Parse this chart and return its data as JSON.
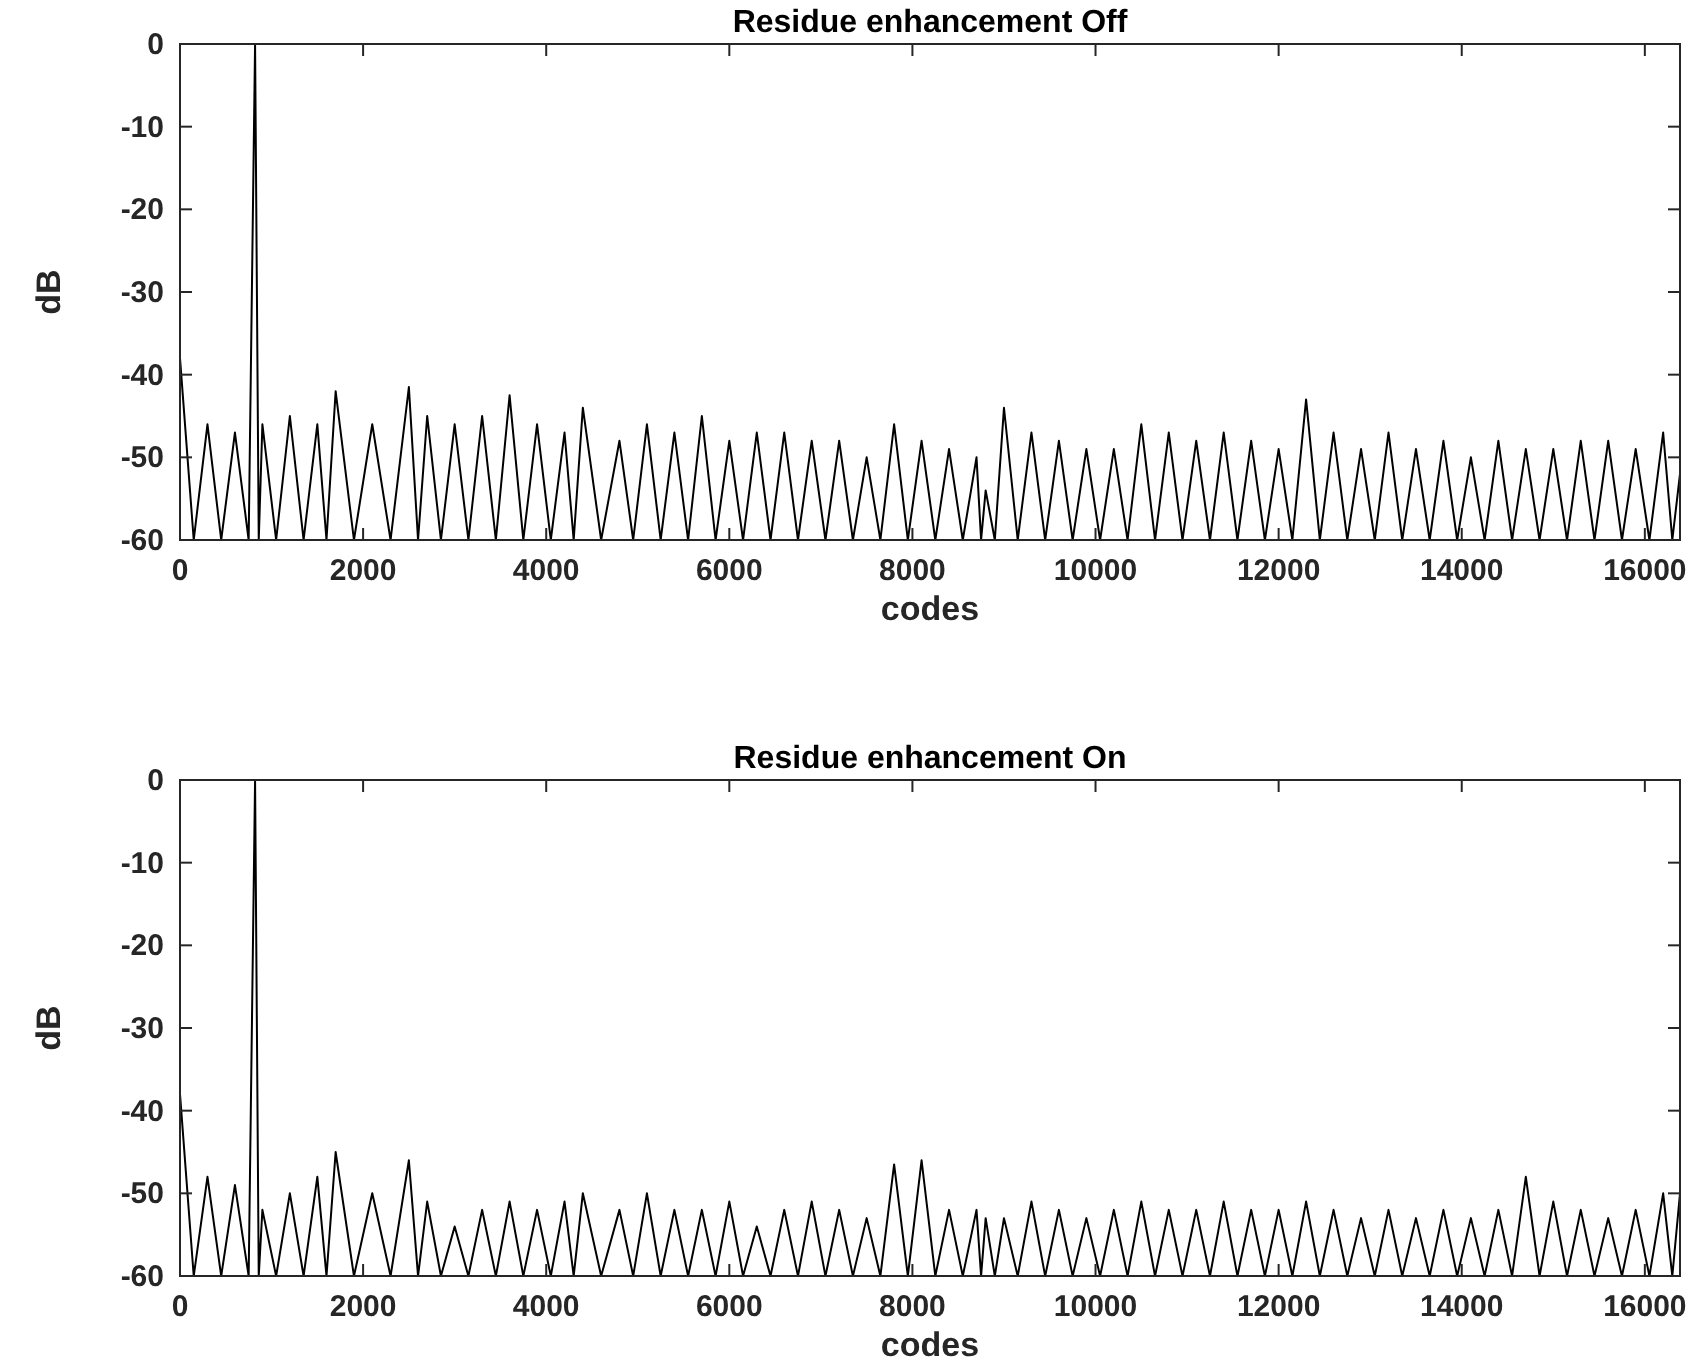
{
  "chart_data": [
    {
      "type": "line",
      "title": "Residue enhancement Off",
      "xlabel": "codes",
      "ylabel": "dB",
      "xlim": [
        0,
        16384
      ],
      "xticks": [
        0,
        2000,
        4000,
        6000,
        8000,
        10000,
        12000,
        14000,
        16000
      ],
      "ylim": [
        -60,
        0
      ],
      "yticks": [
        -60,
        -50,
        -40,
        -30,
        -20,
        -10,
        0
      ],
      "grid": false,
      "series": [
        {
          "color": "#000000",
          "x": [
            0,
            150,
            300,
            450,
            600,
            750,
            820,
            860,
            900,
            1050,
            1200,
            1350,
            1500,
            1600,
            1700,
            1900,
            2100,
            2300,
            2500,
            2600,
            2700,
            2850,
            3000,
            3150,
            3300,
            3450,
            3600,
            3750,
            3900,
            4050,
            4200,
            4300,
            4400,
            4600,
            4800,
            4950,
            5100,
            5250,
            5400,
            5550,
            5700,
            5850,
            6000,
            6150,
            6300,
            6450,
            6600,
            6750,
            6900,
            7050,
            7200,
            7350,
            7500,
            7650,
            7800,
            7950,
            8100,
            8250,
            8400,
            8550,
            8700,
            8750,
            8800,
            8900,
            9000,
            9150,
            9300,
            9450,
            9600,
            9750,
            9900,
            10050,
            10200,
            10350,
            10500,
            10650,
            10800,
            10950,
            11100,
            11250,
            11400,
            11550,
            11700,
            11850,
            12000,
            12150,
            12300,
            12450,
            12600,
            12750,
            12900,
            13050,
            13200,
            13350,
            13500,
            13650,
            13800,
            13950,
            14100,
            14250,
            14400,
            14550,
            14700,
            14850,
            15000,
            15150,
            15300,
            15450,
            15600,
            15750,
            15900,
            16050,
            16200,
            16300,
            16384
          ],
          "values": [
            -38,
            -60,
            -46,
            -60,
            -47,
            -60,
            0,
            -60,
            -46,
            -60,
            -45,
            -60,
            -46,
            -60,
            -42,
            -60,
            -46,
            -60,
            -41.5,
            -60,
            -45,
            -60,
            -46,
            -60,
            -45,
            -60,
            -42.5,
            -60,
            -46,
            -60,
            -47,
            -60,
            -44,
            -60,
            -48,
            -60,
            -46,
            -60,
            -47,
            -60,
            -45,
            -60,
            -48,
            -60,
            -47,
            -60,
            -47,
            -60,
            -48,
            -60,
            -48,
            -60,
            -50,
            -60,
            -46,
            -60,
            -48,
            -60,
            -49,
            -60,
            -50,
            -60,
            -54,
            -60,
            -44,
            -60,
            -47,
            -60,
            -48,
            -60,
            -49,
            -60,
            -49,
            -60,
            -46,
            -60,
            -47,
            -60,
            -48,
            -60,
            -47,
            -60,
            -48,
            -60,
            -49,
            -60,
            -43,
            -60,
            -47,
            -60,
            -49,
            -60,
            -47,
            -60,
            -49,
            -60,
            -48,
            -60,
            -50,
            -60,
            -48,
            -60,
            -49,
            -60,
            -49,
            -60,
            -48,
            -60,
            -48,
            -60,
            -49,
            -60,
            -47,
            -60,
            -52
          ]
        }
      ]
    },
    {
      "type": "line",
      "title": "Residue enhancement On",
      "xlabel": "codes",
      "ylabel": "dB",
      "xlim": [
        0,
        16384
      ],
      "xticks": [
        0,
        2000,
        4000,
        6000,
        8000,
        10000,
        12000,
        14000,
        16000
      ],
      "ylim": [
        -60,
        0
      ],
      "yticks": [
        -60,
        -50,
        -40,
        -30,
        -20,
        -10,
        0
      ],
      "grid": false,
      "series": [
        {
          "color": "#000000",
          "x": [
            0,
            150,
            300,
            450,
            600,
            750,
            820,
            860,
            900,
            1050,
            1200,
            1350,
            1500,
            1600,
            1700,
            1900,
            2100,
            2300,
            2500,
            2600,
            2700,
            2850,
            3000,
            3150,
            3300,
            3450,
            3600,
            3750,
            3900,
            4050,
            4200,
            4300,
            4400,
            4600,
            4800,
            4950,
            5100,
            5250,
            5400,
            5550,
            5700,
            5850,
            6000,
            6150,
            6300,
            6450,
            6600,
            6750,
            6900,
            7050,
            7200,
            7350,
            7500,
            7650,
            7800,
            7950,
            8100,
            8250,
            8400,
            8550,
            8700,
            8750,
            8800,
            8900,
            9000,
            9150,
            9300,
            9450,
            9600,
            9750,
            9900,
            10050,
            10200,
            10350,
            10500,
            10650,
            10800,
            10950,
            11100,
            11250,
            11400,
            11550,
            11700,
            11850,
            12000,
            12150,
            12300,
            12450,
            12600,
            12750,
            12900,
            13050,
            13200,
            13350,
            13500,
            13650,
            13800,
            13950,
            14100,
            14250,
            14400,
            14550,
            14700,
            14850,
            15000,
            15150,
            15300,
            15450,
            15600,
            15750,
            15900,
            16050,
            16200,
            16300,
            16384
          ],
          "values": [
            -38,
            -60,
            -48,
            -60,
            -49,
            -60,
            0,
            -60,
            -52,
            -60,
            -50,
            -60,
            -48,
            -60,
            -45,
            -60,
            -50,
            -60,
            -46,
            -60,
            -51,
            -60,
            -54,
            -60,
            -52,
            -60,
            -51,
            -60,
            -52,
            -60,
            -51,
            -60,
            -50,
            -60,
            -52,
            -60,
            -50,
            -60,
            -52,
            -60,
            -52,
            -60,
            -51,
            -60,
            -54,
            -60,
            -52,
            -60,
            -51,
            -60,
            -52,
            -60,
            -53,
            -60,
            -46.5,
            -60,
            -46,
            -60,
            -52,
            -60,
            -52,
            -60,
            -53,
            -60,
            -53,
            -60,
            -51,
            -60,
            -52,
            -60,
            -53,
            -60,
            -52,
            -60,
            -51,
            -60,
            -52,
            -60,
            -52,
            -60,
            -51,
            -60,
            -52,
            -60,
            -52,
            -60,
            -51,
            -60,
            -52,
            -60,
            -53,
            -60,
            -52,
            -60,
            -53,
            -60,
            -52,
            -60,
            -53,
            -60,
            -52,
            -60,
            -48,
            -60,
            -51,
            -60,
            -52,
            -60,
            -53,
            -60,
            -52,
            -60,
            -50,
            -60,
            -50
          ]
        }
      ]
    }
  ]
}
